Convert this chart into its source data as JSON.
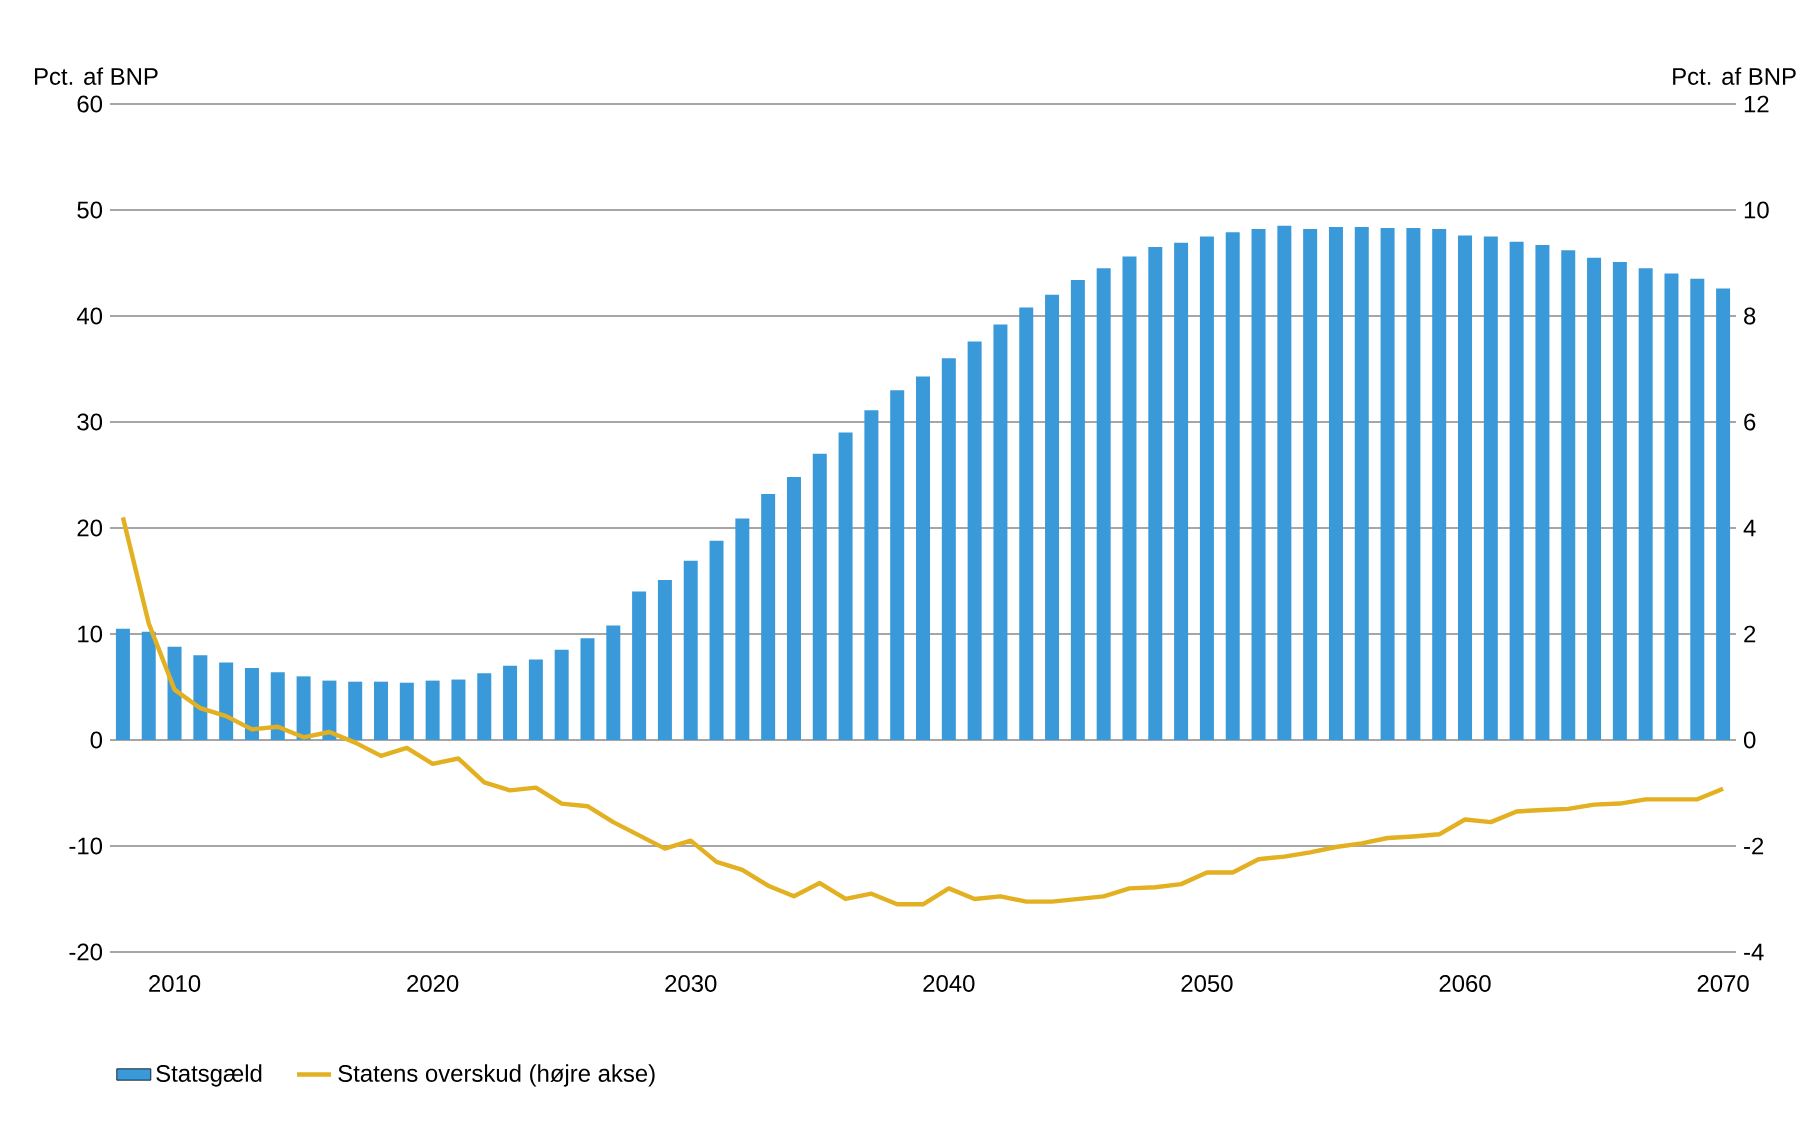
{
  "chart_data": {
    "type": "bar",
    "x": [
      2008,
      2009,
      2010,
      2011,
      2012,
      2013,
      2014,
      2015,
      2016,
      2017,
      2018,
      2019,
      2020,
      2021,
      2022,
      2023,
      2024,
      2025,
      2026,
      2027,
      2028,
      2029,
      2030,
      2031,
      2032,
      2033,
      2034,
      2035,
      2036,
      2037,
      2038,
      2039,
      2040,
      2041,
      2042,
      2043,
      2044,
      2045,
      2046,
      2047,
      2048,
      2049,
      2050,
      2051,
      2052,
      2053,
      2054,
      2055,
      2056,
      2057,
      2058,
      2059,
      2060,
      2061,
      2062,
      2063,
      2064,
      2065,
      2066,
      2067,
      2068,
      2069,
      2070
    ],
    "series": [
      {
        "name": "Statsgæld",
        "color": "#3a9ad9",
        "values": [
          10.5,
          10.2,
          8.8,
          8.0,
          7.3,
          6.8,
          6.4,
          6.0,
          5.6,
          5.5,
          5.5,
          5.4,
          5.6,
          5.7,
          6.3,
          7.0,
          7.6,
          8.5,
          9.6,
          10.8,
          14.0,
          15.1,
          16.9,
          18.8,
          20.9,
          23.2,
          24.8,
          27.0,
          29.0,
          31.1,
          33.0,
          34.3,
          36.0,
          37.6,
          39.2,
          40.8,
          42.0,
          43.4,
          44.5,
          45.6,
          46.5,
          46.9,
          47.5,
          47.9,
          48.2,
          48.5,
          48.2,
          48.4,
          48.4,
          48.3,
          48.3,
          48.2,
          47.6,
          47.5,
          47.0,
          46.7,
          46.2,
          45.5,
          45.1,
          44.5,
          44.0,
          43.5,
          42.6
        ]
      },
      {
        "name": "Statens overskud (højre akse)",
        "type": "line",
        "axis": "y2",
        "color": "#e2b021",
        "values": [
          4.2,
          2.2,
          0.95,
          0.6,
          0.45,
          0.2,
          0.25,
          0.05,
          0.15,
          -0.05,
          -0.3,
          -0.15,
          -0.45,
          -0.35,
          -0.8,
          -0.95,
          -0.9,
          -1.2,
          -1.25,
          -1.55,
          -1.8,
          -2.05,
          -1.9,
          -2.3,
          -2.45,
          -2.75,
          -2.95,
          -2.7,
          -3.0,
          -2.9,
          -3.1,
          -3.1,
          -2.8,
          -3.0,
          -2.95,
          -3.05,
          -3.05,
          -3.0,
          -2.95,
          -2.8,
          -2.78,
          -2.72,
          -2.5,
          -2.5,
          -2.25,
          -2.2,
          -2.12,
          -2.02,
          -1.95,
          -1.85,
          -1.82,
          -1.78,
          -1.5,
          -1.55,
          -1.35,
          -1.32,
          -1.3,
          -1.22,
          -1.2,
          -1.12,
          -1.12,
          -1.12,
          -0.92
        ]
      }
    ],
    "xlim": [
      2007.5,
      2070.5
    ],
    "xticks": [
      2010,
      2020,
      2030,
      2040,
      2050,
      2060,
      2070
    ],
    "ylim": [
      -20,
      60
    ],
    "yticks": [
      -20,
      -10,
      0,
      10,
      20,
      30,
      40,
      50,
      60
    ],
    "y2lim": [
      -4,
      12
    ],
    "y2ticks": [
      -4,
      -2,
      0,
      2,
      4,
      6,
      8,
      10,
      12
    ],
    "ylabel": "Pct. af BNP",
    "y2label": "Pct. af BNP",
    "grid": "y",
    "legend": "bottom"
  }
}
